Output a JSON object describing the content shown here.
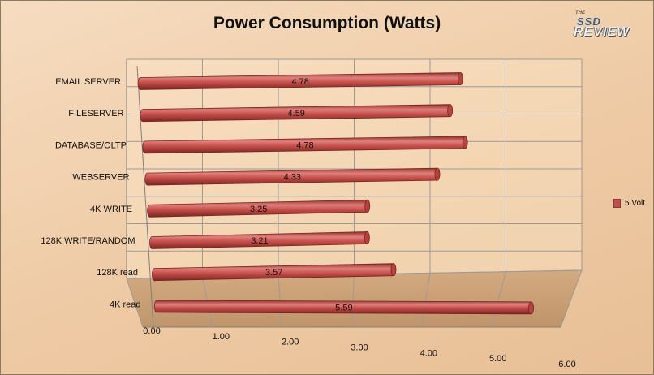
{
  "chart_data": {
    "type": "bar",
    "orientation": "horizontal",
    "style": "3d-cylinder",
    "title": "Power Consumption (Watts)",
    "categories": [
      "EMAIL SERVER",
      "FILESERVER",
      "DATABASE/OLTP",
      "WEBSERVER",
      "4K WRITE",
      "128K WRITE/RANDOM",
      "128K read",
      "4K read"
    ],
    "series": [
      {
        "name": "5 Volt",
        "color": "#c0504d",
        "values": [
          4.78,
          4.59,
          4.78,
          4.33,
          3.25,
          3.21,
          3.57,
          5.59
        ]
      }
    ],
    "xlim": [
      0,
      6
    ],
    "xticks": [
      "0.00",
      "1.00",
      "2.00",
      "3.00",
      "4.00",
      "5.00",
      "6.00"
    ],
    "value_labels": [
      "4.78",
      "4.59",
      "4.78",
      "4.33",
      "3.25",
      "3.21",
      "3.57",
      "5.59"
    ],
    "legend_position": "right",
    "grid": true
  },
  "logo": {
    "top": "THE",
    "mid": "SSD",
    "bottom": "REVIEW"
  }
}
